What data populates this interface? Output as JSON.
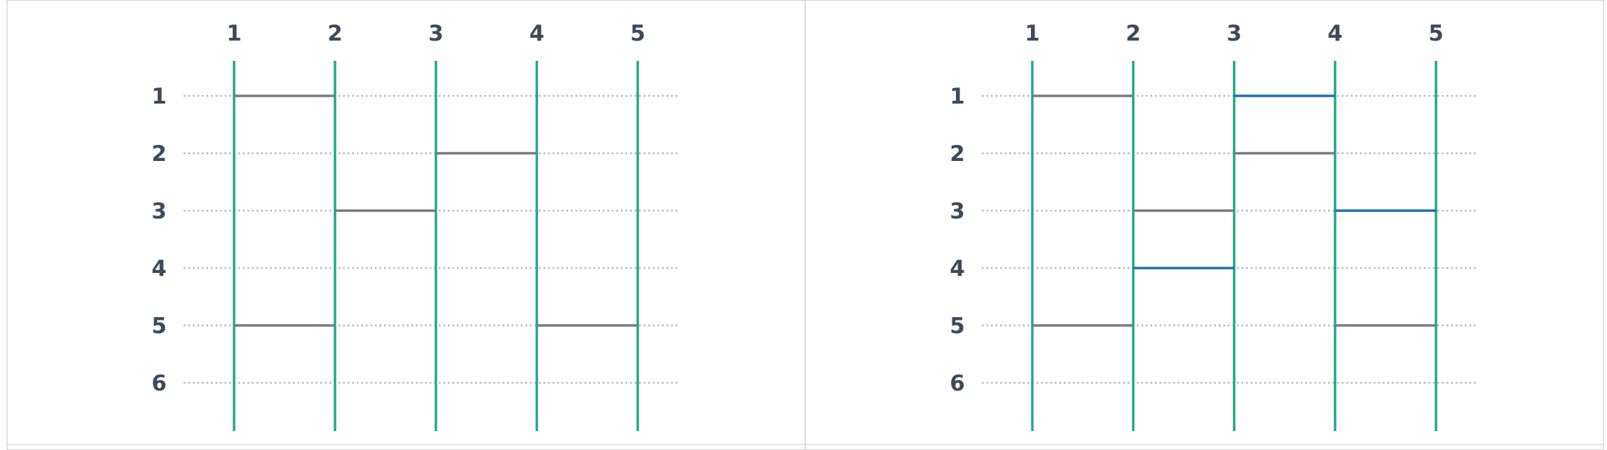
{
  "colors": {
    "vertical": "#22a884",
    "rung": "#7a7a7a",
    "new_rung": "#1f6fb0",
    "label": "#3d4a5c",
    "guide": "#b5b5b5",
    "border": "#d8d8d8"
  },
  "panels": [
    {
      "name": "left",
      "columns": [
        "1",
        "2",
        "3",
        "4",
        "5"
      ],
      "rows": [
        "1",
        "2",
        "3",
        "4",
        "5",
        "6"
      ],
      "rungs": [
        {
          "row": 1,
          "from": 1,
          "to": 2,
          "kind": "existing"
        },
        {
          "row": 2,
          "from": 3,
          "to": 4,
          "kind": "existing"
        },
        {
          "row": 3,
          "from": 2,
          "to": 3,
          "kind": "existing"
        },
        {
          "row": 5,
          "from": 1,
          "to": 2,
          "kind": "existing"
        },
        {
          "row": 5,
          "from": 4,
          "to": 5,
          "kind": "existing"
        }
      ]
    },
    {
      "name": "right",
      "columns": [
        "1",
        "2",
        "3",
        "4",
        "5"
      ],
      "rows": [
        "1",
        "2",
        "3",
        "4",
        "5",
        "6"
      ],
      "rungs": [
        {
          "row": 1,
          "from": 1,
          "to": 2,
          "kind": "existing"
        },
        {
          "row": 1,
          "from": 3,
          "to": 4,
          "kind": "new"
        },
        {
          "row": 2,
          "from": 3,
          "to": 4,
          "kind": "existing"
        },
        {
          "row": 3,
          "from": 2,
          "to": 3,
          "kind": "existing"
        },
        {
          "row": 3,
          "from": 4,
          "to": 5,
          "kind": "new"
        },
        {
          "row": 4,
          "from": 2,
          "to": 3,
          "kind": "new"
        },
        {
          "row": 5,
          "from": 1,
          "to": 2,
          "kind": "existing"
        },
        {
          "row": 5,
          "from": 4,
          "to": 5,
          "kind": "existing"
        }
      ]
    }
  ]
}
